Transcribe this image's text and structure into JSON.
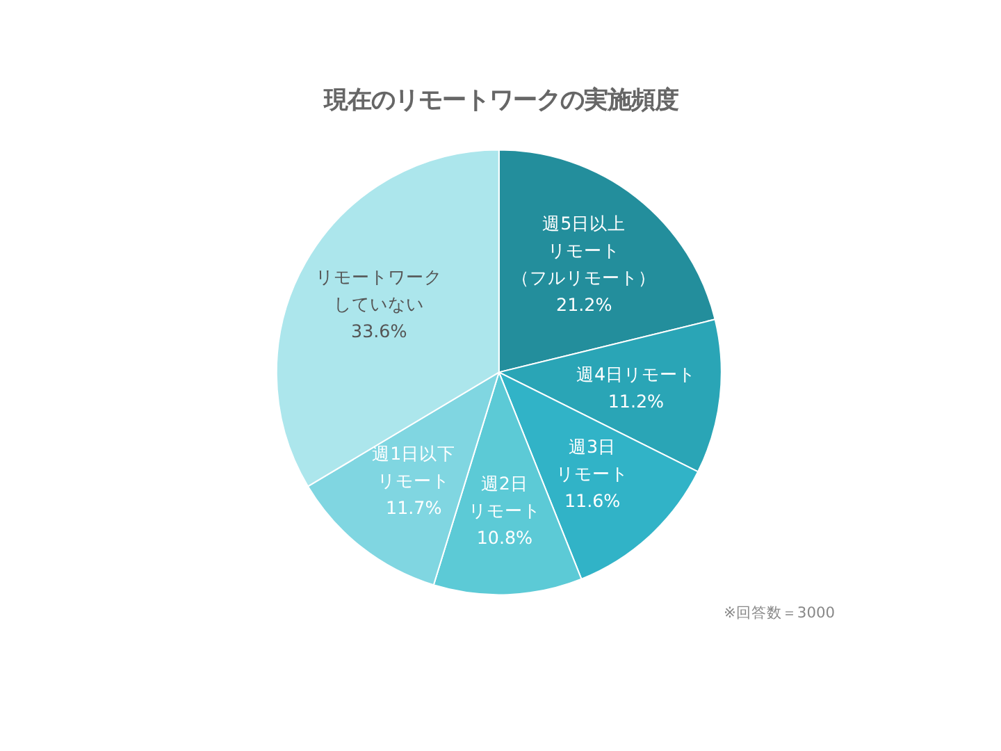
{
  "chart_data": {
    "type": "pie",
    "title": "現在のリモートワークの実施頻度",
    "categories": [
      "週5日以上リモート（フルリモート）",
      "週4日リモート",
      "週3日リモート",
      "週2日リモート",
      "週1日以下リモート",
      "リモートワークしていない"
    ],
    "values": [
      21.2,
      11.2,
      11.6,
      10.8,
      11.7,
      33.6
    ],
    "value_labels": [
      "21.2%",
      "11.2%",
      "11.6%",
      "10.8%",
      "11.7%",
      "33.6%"
    ],
    "colors": [
      "#238e9c",
      "#2aa5b6",
      "#31b3c7",
      "#5ccad6",
      "#80d6e1",
      "#ace6ec"
    ],
    "annotations": [
      "※回答数＝3000"
    ]
  }
}
